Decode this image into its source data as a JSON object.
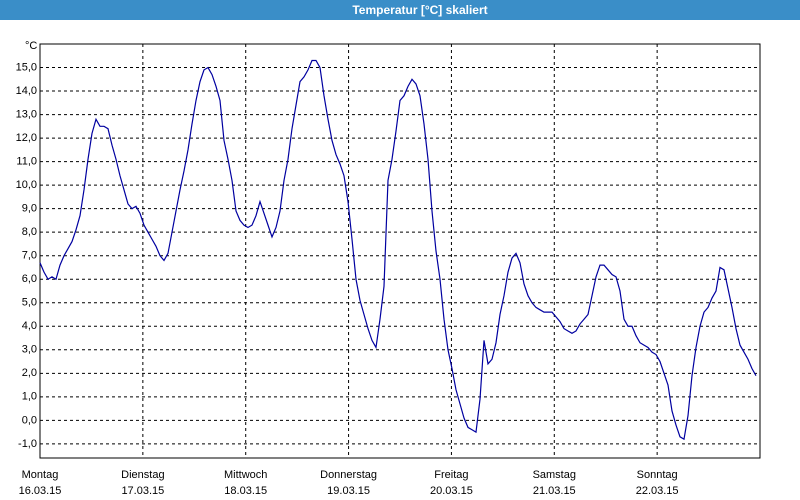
{
  "chart_data": {
    "type": "line",
    "title": "Temperatur [°C] skaliert",
    "ylabel": "°C",
    "x": [
      0,
      56,
      112,
      168,
      224,
      280,
      336,
      392,
      448,
      504,
      560,
      616,
      672,
      728,
      784,
      840,
      896,
      952,
      1008,
      1064,
      1120,
      1176,
      1232,
      1288,
      1344,
      1400,
      1456,
      1512,
      1568,
      1624,
      1680,
      1736,
      1792,
      1848,
      1904,
      1960,
      2016,
      2072,
      2128,
      2184,
      2240,
      2296,
      2352,
      2408,
      2464,
      2520,
      2576,
      2632,
      2688,
      2744,
      2800,
      2856,
      2912,
      2968,
      3024,
      3080,
      3136,
      3192,
      3248,
      3304,
      3360,
      3416,
      3472,
      3528,
      3584,
      3640,
      3696,
      3752,
      3808,
      3864,
      3920,
      3976,
      4032,
      4088,
      4144,
      4200,
      4256,
      4312,
      4368,
      4424,
      4480,
      4536,
      4592,
      4648,
      4704,
      4760,
      4816,
      4872,
      4928,
      4984,
      5040,
      5096,
      5152,
      5208,
      5264,
      5320,
      5376,
      5432,
      5488,
      5544,
      5600,
      5656,
      5712,
      5768,
      5824,
      5880,
      5936,
      5992,
      6048,
      6104,
      6160,
      6216,
      6272,
      6328,
      6384,
      6440,
      6496,
      6552,
      6608,
      6664,
      6720,
      6776,
      6832,
      6888,
      6944,
      7000,
      7056,
      7112,
      7168,
      7224,
      7280,
      7336,
      7392,
      7448,
      7504,
      7560,
      7616,
      7672,
      7728,
      7784,
      7840,
      7896,
      7952,
      8008,
      8064,
      8120,
      8176,
      8232,
      8288,
      8344,
      8400,
      8456,
      8512,
      8568,
      8624,
      8680,
      8736,
      8792,
      8848,
      8904,
      8960,
      9016,
      9072,
      9128,
      9184,
      9240,
      9296,
      9352,
      9408,
      9464,
      9520,
      9576,
      9632,
      9688,
      9744,
      9800,
      9856,
      9912,
      9968,
      10024
    ],
    "series": [
      {
        "color": "#0000a0",
        "values": [
          6.7,
          6.3,
          6.0,
          6.1,
          6.0,
          6.6,
          7.0,
          7.3,
          7.6,
          8.1,
          8.7,
          9.8,
          11.1,
          12.2,
          12.8,
          12.5,
          12.5,
          12.4,
          11.7,
          11.1,
          10.4,
          9.8,
          9.2,
          9.0,
          9.1,
          8.8,
          8.3,
          8.0,
          7.7,
          7.4,
          7.0,
          6.8,
          7.1,
          8.0,
          8.9,
          9.8,
          10.6,
          11.5,
          12.6,
          13.6,
          14.4,
          14.9,
          15.0,
          14.7,
          14.2,
          13.6,
          11.9,
          11.1,
          10.2,
          8.9,
          8.5,
          8.3,
          8.2,
          8.3,
          8.7,
          9.3,
          8.8,
          8.3,
          7.8,
          8.2,
          8.9,
          10.2,
          11.1,
          12.4,
          13.4,
          14.4,
          14.6,
          14.9,
          15.3,
          15.3,
          15.0,
          13.8,
          12.8,
          11.9,
          11.3,
          10.9,
          10.4,
          9.3,
          7.7,
          6.0,
          5.1,
          4.5,
          3.9,
          3.4,
          3.1,
          4.3,
          5.7,
          10.2,
          11.1,
          12.3,
          13.6,
          13.8,
          14.2,
          14.5,
          14.3,
          13.8,
          12.6,
          11.1,
          8.9,
          7.2,
          6.0,
          4.3,
          3.0,
          2.2,
          1.3,
          0.7,
          0.1,
          -0.3,
          -0.4,
          -0.5,
          0.9,
          3.4,
          2.4,
          2.6,
          3.3,
          4.5,
          5.3,
          6.3,
          6.9,
          7.1,
          6.7,
          5.8,
          5.3,
          5.0,
          4.8,
          4.7,
          4.6,
          4.6,
          4.6,
          4.4,
          4.2,
          3.9,
          3.8,
          3.7,
          3.8,
          4.1,
          4.3,
          4.5,
          5.3,
          6.1,
          6.6,
          6.6,
          6.4,
          6.2,
          6.1,
          5.5,
          4.3,
          4.0,
          4.0,
          3.6,
          3.3,
          3.2,
          3.1,
          2.9,
          2.8,
          2.5,
          2.0,
          1.5,
          0.4,
          -0.2,
          -0.7,
          -0.8,
          0.2,
          1.9,
          3.1,
          4.0,
          4.6,
          4.8,
          5.2,
          5.5,
          6.5,
          6.4,
          5.6,
          4.8,
          3.9,
          3.2,
          2.9,
          2.6,
          2.2,
          1.9
        ]
      }
    ],
    "xlim": [
      0,
      10080
    ],
    "xticks": [
      {
        "value": 0,
        "label": "Montag",
        "date": "16.03.15"
      },
      {
        "value": 1440,
        "label": "Dienstag",
        "date": "17.03.15"
      },
      {
        "value": 2880,
        "label": "Mittwoch",
        "date": "18.03.15"
      },
      {
        "value": 4320,
        "label": "Donnerstag",
        "date": "19.03.15"
      },
      {
        "value": 5760,
        "label": "Freitag",
        "date": "20.03.15"
      },
      {
        "value": 7200,
        "label": "Samstag",
        "date": "21.03.15"
      },
      {
        "value": 8640,
        "label": "Sonntag",
        "date": "22.03.15"
      }
    ],
    "ylim": [
      -1.6,
      16.0
    ],
    "yticks": [
      {
        "value": -1,
        "label": "-1,0"
      },
      {
        "value": 0,
        "label": "0,0"
      },
      {
        "value": 1,
        "label": "1,0"
      },
      {
        "value": 2,
        "label": "2,0"
      },
      {
        "value": 3,
        "label": "3,0"
      },
      {
        "value": 4,
        "label": "4,0"
      },
      {
        "value": 5,
        "label": "5,0"
      },
      {
        "value": 6,
        "label": "6,0"
      },
      {
        "value": 7,
        "label": "7,0"
      },
      {
        "value": 8,
        "label": "8,0"
      },
      {
        "value": 9,
        "label": "9,0"
      },
      {
        "value": 10,
        "label": "10,0"
      },
      {
        "value": 11,
        "label": "11,0"
      },
      {
        "value": 12,
        "label": "12,0"
      },
      {
        "value": 13,
        "label": "13,0"
      },
      {
        "value": 14,
        "label": "14,0"
      },
      {
        "value": 15,
        "label": "15,0"
      }
    ],
    "grid": true
  }
}
